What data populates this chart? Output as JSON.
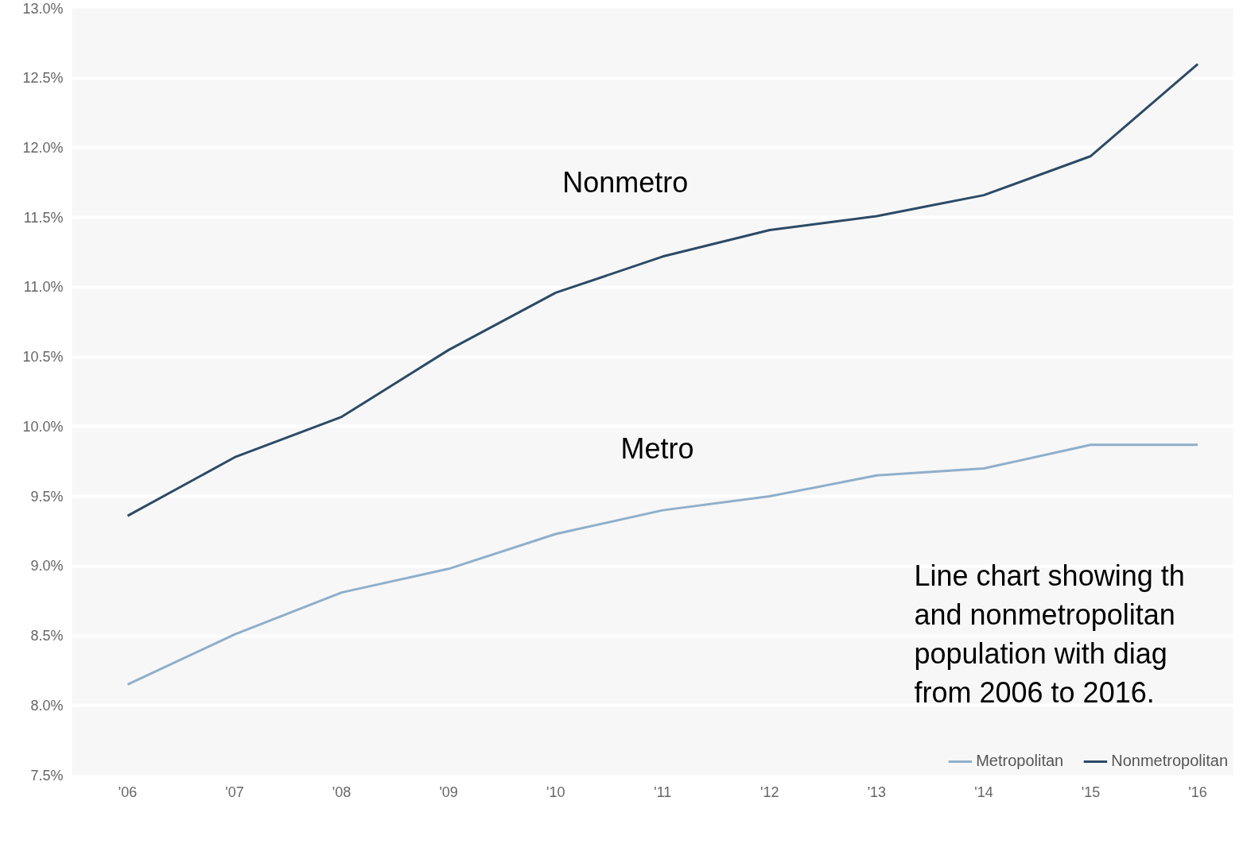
{
  "chart_data": {
    "type": "line",
    "categories": [
      "'06",
      "'07",
      "'08",
      "'09",
      "'10",
      "'11",
      "'12",
      "'13",
      "'14",
      "'15",
      "'16"
    ],
    "series": [
      {
        "name": "Metropolitan",
        "color": "#8fafca",
        "values": [
          8.15,
          8.51,
          8.81,
          8.98,
          9.23,
          9.4,
          9.5,
          9.65,
          9.7,
          9.87,
          9.87
        ]
      },
      {
        "name": "Nonmetropolitan",
        "color": "#2c4a66",
        "values": [
          9.36,
          9.78,
          10.07,
          10.55,
          10.96,
          11.22,
          11.41,
          11.51,
          11.66,
          11.94,
          12.6
        ]
      }
    ],
    "ylim": [
      7.5,
      13.0
    ],
    "yticks": [
      {
        "value": 7.5,
        "label": "7.5%"
      },
      {
        "value": 8.0,
        "label": "8.0%"
      },
      {
        "value": 8.5,
        "label": "8.5%"
      },
      {
        "value": 9.0,
        "label": "9.0%"
      },
      {
        "value": 9.5,
        "label": "9.5%"
      },
      {
        "value": 10.0,
        "label": "10.0%"
      },
      {
        "value": 10.5,
        "label": "10.5%"
      },
      {
        "value": 11.0,
        "label": "11.0%"
      },
      {
        "value": 11.5,
        "label": "11.5%"
      },
      {
        "value": 12.0,
        "label": "12.0%"
      },
      {
        "value": 12.5,
        "label": "12.5%"
      },
      {
        "value": 13.0,
        "label": "13.0%"
      }
    ],
    "annotations": [
      "Nonmetro",
      "Metro",
      "Line chart showing th\nand nonmetropolitan\npopulation with diag\nfrom 2006 to 2016."
    ],
    "grid": "y",
    "legend": "bottom right",
    "marker": "none",
    "line_style": "solid"
  }
}
